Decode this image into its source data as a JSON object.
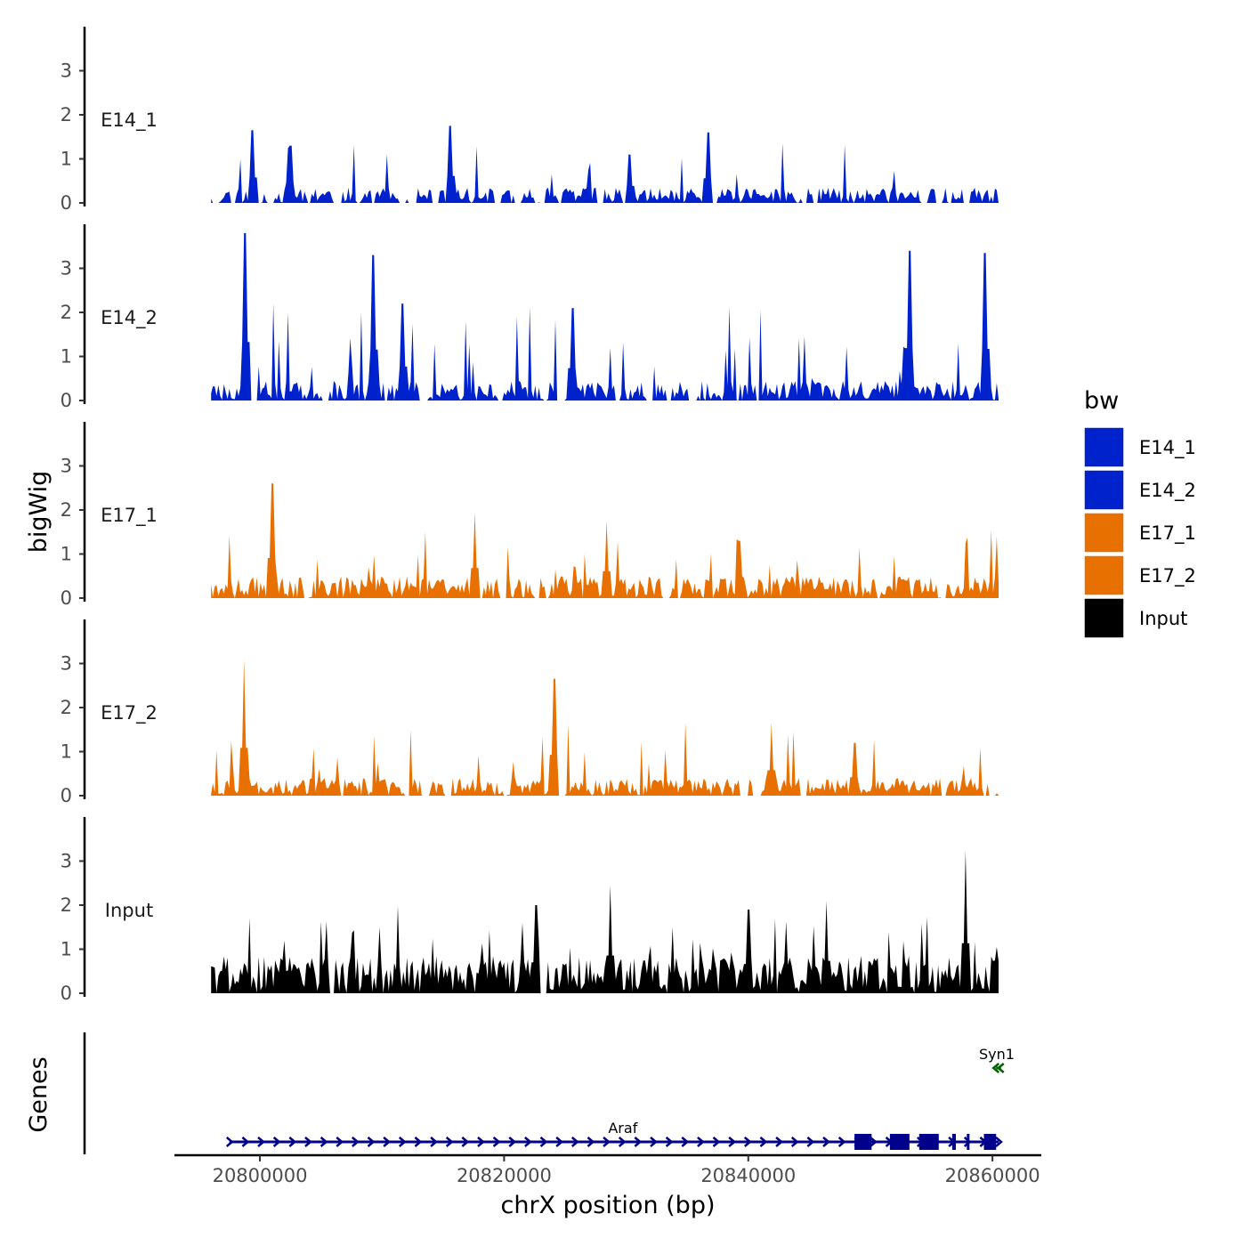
{
  "chart_data": {
    "type": "area",
    "xlabel": "chrX position (bp)",
    "ylabel": "bigWig",
    "genes_label": "Genes",
    "xlim": [
      20793000,
      20864000
    ],
    "ylim": [
      0,
      4
    ],
    "data_range": [
      20796000,
      20860500
    ],
    "x_ticks": [
      20800000,
      20820000,
      20840000,
      20860000
    ],
    "x_tick_labels": [
      "20800000",
      "20820000",
      "20840000",
      "20860000"
    ],
    "y_ticks": [
      0,
      1,
      2,
      3
    ],
    "y_tick_labels": [
      "0",
      "1",
      "2",
      "3"
    ],
    "legend": {
      "title": "bw",
      "placement": "right",
      "entries": [
        {
          "name": "E14_1",
          "color": "#0022cc"
        },
        {
          "name": "E14_2",
          "color": "#0022cc"
        },
        {
          "name": "E17_1",
          "color": "#e87000"
        },
        {
          "name": "E17_2",
          "color": "#e87000"
        },
        {
          "name": "Input",
          "color": "#000000"
        }
      ]
    },
    "series": [
      {
        "name": "E14_1",
        "color": "#0022cc",
        "seed": 11,
        "base": 0.35,
        "spike_prob": 0.05,
        "spike_max": 1.0,
        "gap_prob": 0.08,
        "peaks": [
          [
            20799400,
            1.65
          ],
          [
            20815600,
            1.75
          ],
          [
            20836700,
            1.6
          ],
          [
            20802500,
            1.3
          ],
          [
            20830300,
            1.1
          ]
        ]
      },
      {
        "name": "E14_2",
        "color": "#0022cc",
        "seed": 23,
        "base": 0.45,
        "spike_prob": 0.08,
        "spike_max": 1.6,
        "gap_prob": 0.03,
        "peaks": [
          [
            20798800,
            3.8
          ],
          [
            20809300,
            3.3
          ],
          [
            20853200,
            3.4
          ],
          [
            20859400,
            3.35
          ],
          [
            20811700,
            2.2
          ],
          [
            20825600,
            2.1
          ]
        ]
      },
      {
        "name": "E17_1",
        "color": "#e87000",
        "seed": 37,
        "base": 0.5,
        "spike_prob": 0.06,
        "spike_max": 0.9,
        "gap_prob": 0.03,
        "peaks": [
          [
            20801000,
            2.6
          ],
          [
            20817600,
            1.95
          ],
          [
            20828400,
            1.75
          ],
          [
            20839300,
            1.3
          ]
        ]
      },
      {
        "name": "E17_2",
        "color": "#e87000",
        "seed": 53,
        "base": 0.4,
        "spike_prob": 0.06,
        "spike_max": 1.0,
        "gap_prob": 0.04,
        "peaks": [
          [
            20798700,
            3.1
          ],
          [
            20824100,
            2.65
          ],
          [
            20841900,
            1.65
          ],
          [
            20848700,
            1.2
          ]
        ]
      },
      {
        "name": "Input",
        "color": "#000000",
        "seed": 71,
        "base": 0.85,
        "spike_prob": 0.08,
        "spike_max": 1.1,
        "gap_prob": 0.005,
        "peaks": [
          [
            20828700,
            2.45
          ],
          [
            20857800,
            3.25
          ],
          [
            20822600,
            2.0
          ],
          [
            20846400,
            2.1
          ],
          [
            20840000,
            1.9
          ]
        ]
      }
    ],
    "genes": [
      {
        "name": "Araf",
        "start": 20797500,
        "end": 20860500,
        "strand": "+",
        "color": "#00008b",
        "exons": [
          [
            20848700,
            20850100
          ],
          [
            20851600,
            20853200
          ],
          [
            20854000,
            20855600
          ],
          [
            20856700,
            20857000
          ],
          [
            20857900,
            20858100
          ],
          [
            20859300,
            20860300
          ]
        ]
      },
      {
        "name": "Syn1",
        "start": 20860300,
        "end": 20860700,
        "strand": "-",
        "color": "#006400",
        "exons": []
      }
    ]
  }
}
